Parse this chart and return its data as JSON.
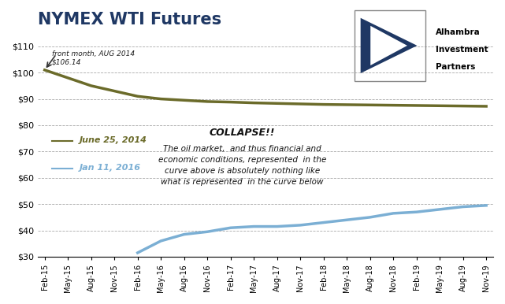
{
  "title": "NYMEX WTI Futures",
  "title_color": "#1F3864",
  "bg_color": "#FFFFFF",
  "plot_bg_color": "#FFFFFF",
  "grid_color": "#AAAAAA",
  "ylim": [
    30,
    115
  ],
  "yticks": [
    30,
    40,
    50,
    60,
    70,
    80,
    90,
    100,
    110
  ],
  "ytick_labels": [
    "$30",
    "$40",
    "$50",
    "$60",
    "$70",
    "$80",
    "$90",
    "$100",
    "$110"
  ],
  "xtick_labels": [
    "Feb-15",
    "May-15",
    "Aug-15",
    "Nov-15",
    "Feb-16",
    "May-16",
    "Aug-16",
    "Nov-16",
    "Feb-17",
    "May-17",
    "Aug-17",
    "Nov-17",
    "Feb-18",
    "May-18",
    "Aug-18",
    "Nov-18",
    "Feb-19",
    "May-19",
    "Aug-19",
    "Nov-19"
  ],
  "curve1_color": "#6B6B2A",
  "curve2_color": "#7BAFD4",
  "curve1_label": "June 25, 2014",
  "curve2_label": "Jan 11, 2016",
  "annotation_text": "front month, AUG 2014\n$106.14",
  "collapse_title": "COLLAPSE!!",
  "collapse_body": "The oil market,  and thus financial and\neconomic conditions, represented  in the\ncurve above is absolutely nothing like\nwhat is represented  in the curve below",
  "curve1_x": [
    0,
    1,
    2,
    3,
    4,
    5,
    6,
    7,
    8,
    9,
    10,
    11,
    12,
    13,
    14,
    15,
    16,
    17,
    18,
    19
  ],
  "curve1_y": [
    101,
    98,
    95,
    93,
    91,
    90,
    89.5,
    89,
    88.8,
    88.5,
    88.3,
    88.1,
    87.9,
    87.8,
    87.7,
    87.6,
    87.5,
    87.4,
    87.3,
    87.2
  ],
  "curve2_x": [
    4,
    5,
    6,
    7,
    8,
    9,
    10,
    11,
    12,
    13,
    14,
    15,
    16,
    17,
    18,
    19
  ],
  "curve2_y": [
    31.5,
    36,
    38.5,
    39.5,
    41,
    41.5,
    41.5,
    42,
    43,
    44,
    45,
    46.5,
    47,
    48,
    49,
    49.5
  ]
}
